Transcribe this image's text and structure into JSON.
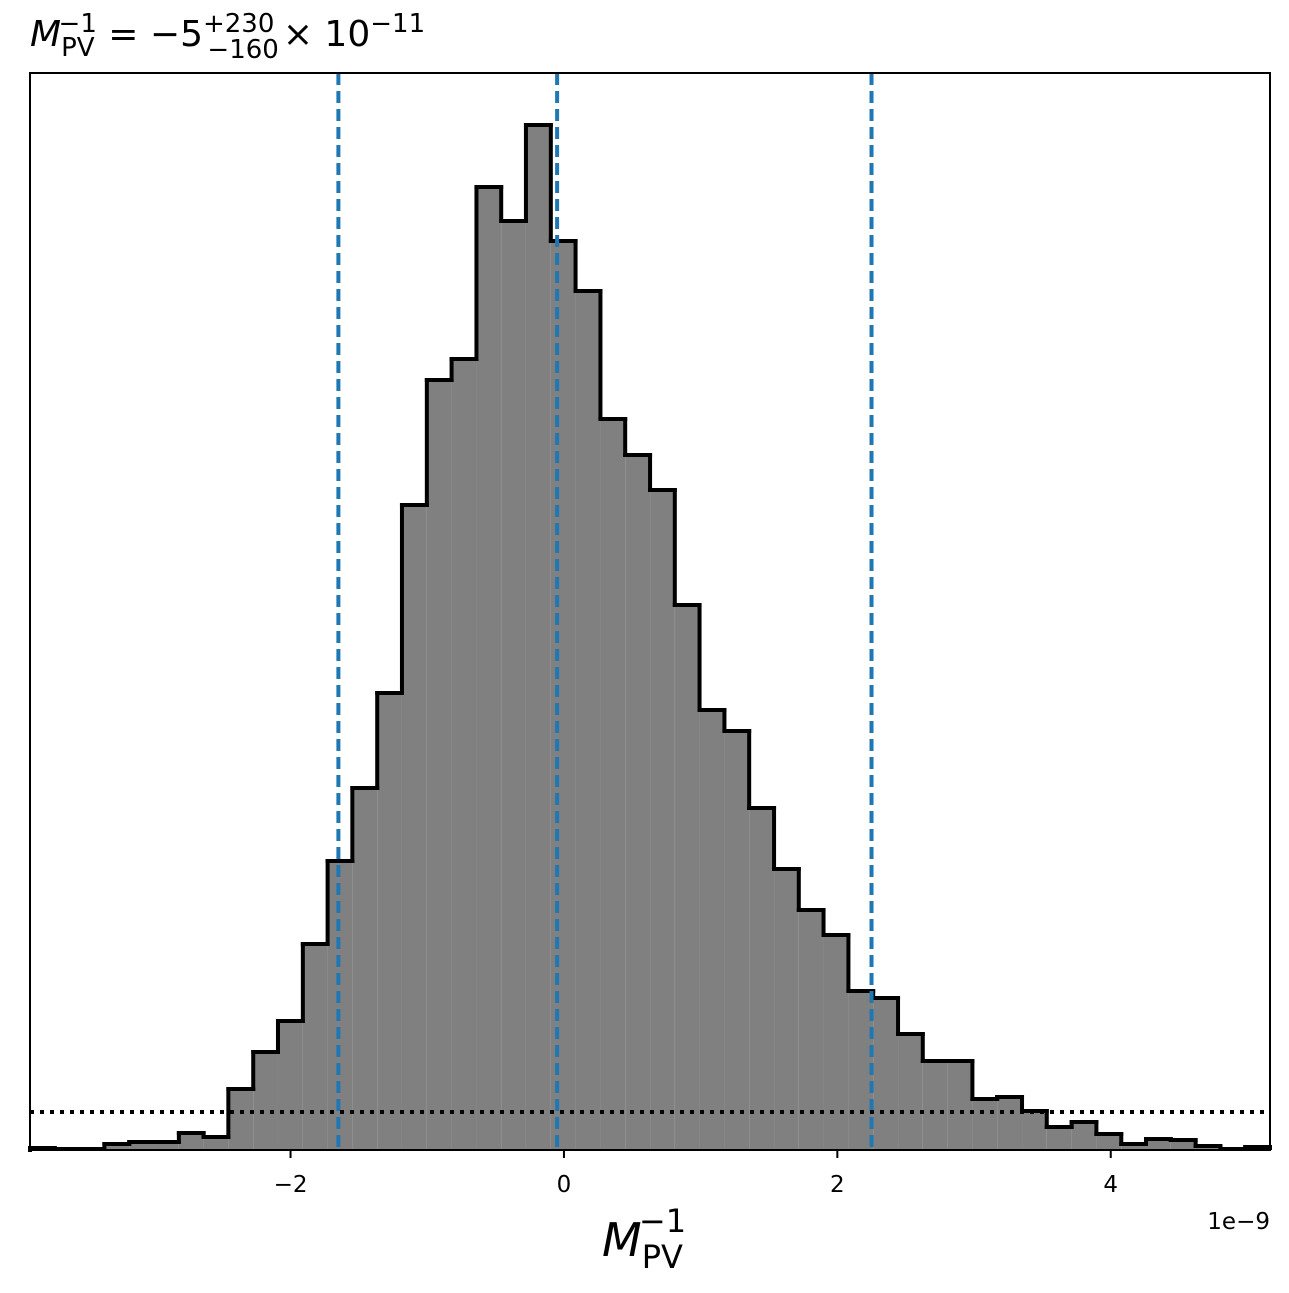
{
  "chart_data": {
    "type": "histogram",
    "title": {
      "symbol": "M",
      "subscript": "PV",
      "superscript": "−1",
      "equals": " = −5",
      "upper": "+230",
      "lower": "−160",
      "times": "× 10",
      "exponent": "−11"
    },
    "x_label": {
      "symbol": "M",
      "subscript": "PV",
      "superscript": "−1"
    },
    "x_offset_text": "1e−9",
    "bins": [
      -3.906,
      -3.725,
      -3.543,
      -3.362,
      -3.18,
      -2.999,
      -2.817,
      -2.636,
      -2.455,
      -2.273,
      -2.092,
      -1.91,
      -1.729,
      -1.548,
      -1.366,
      -1.185,
      -1.003,
      -0.822,
      -0.64,
      -0.459,
      -0.278,
      -0.096,
      0.085,
      0.267,
      0.448,
      0.63,
      0.811,
      0.992,
      1.174,
      1.355,
      1.537,
      1.718,
      1.899,
      2.081,
      2.262,
      2.444,
      2.625,
      2.807,
      2.988,
      3.169,
      3.351,
      3.532,
      3.714,
      3.895,
      4.077,
      4.258,
      4.439,
      4.621,
      4.802,
      4.984,
      5.165
    ],
    "values": [
      0.2,
      0.1,
      0.1,
      0.6,
      0.8,
      0.8,
      1.7,
      1.3,
      6.1,
      9.8,
      12.9,
      20.6,
      28.9,
      36.2,
      45.7,
      64.5,
      77.0,
      79.1,
      96.3,
      92.9,
      102.5,
      90.9,
      85.9,
      73.1,
      69.5,
      66.0,
      54.5,
      44.0,
      41.9,
      34.2,
      28.1,
      24.0,
      21.5,
      15.9,
      15.2,
      11.6,
      8.9,
      8.9,
      5.1,
      5.3,
      3.9,
      2.3,
      2.8,
      1.6,
      0.6,
      1.1,
      1.0,
      0.4,
      0.1,
      0.3
    ],
    "color": "#808080",
    "edge_color": "#000000",
    "xlim": [
      -3.906,
      5.165
    ],
    "ylim": [
      0,
      107.7
    ],
    "xticks": [
      {
        "value": -2,
        "label": "−2"
      },
      0,
      2,
      4
    ],
    "vlines": {
      "values": [
        -1.65,
        -0.05,
        2.25
      ],
      "color": "#1f77b4",
      "style": "dashed"
    },
    "hline": {
      "value": 3.8,
      "color": "#000000",
      "style": "dotted"
    }
  }
}
